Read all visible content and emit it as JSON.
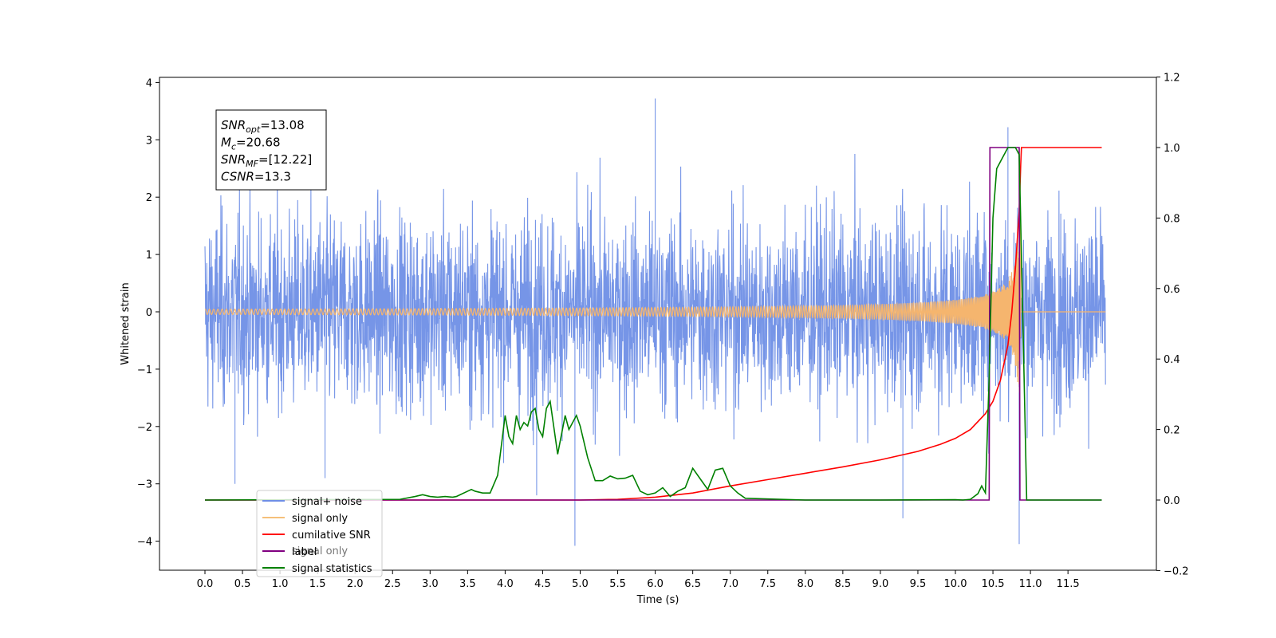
{
  "chart_data": {
    "type": "line",
    "xlabel": "Time (s)",
    "ylabel": "Whitened strain",
    "xlim": [
      -0.6,
      12.6
    ],
    "ylim": [
      -4.5,
      4.1
    ],
    "ylim_right": [
      -0.2,
      1.2
    ],
    "x_ticks": [
      "0.0",
      "0.5",
      "1.0",
      "1.5",
      "2.0",
      "2.5",
      "3.0",
      "3.5",
      "4.0",
      "4.5",
      "5.0",
      "5.5",
      "6.0",
      "6.5",
      "7.0",
      "7.5",
      "8.0",
      "8.5",
      "9.0",
      "9.5",
      "10.0",
      "10.5",
      "11.0",
      "11.5"
    ],
    "y_ticks_left": [
      "4",
      "3",
      "2",
      "1",
      "0",
      "−1",
      "−2",
      "−3",
      "−4"
    ],
    "y_ticks_right": [
      "1.2",
      "1.0",
      "0.8",
      "0.6",
      "0.4",
      "0.2",
      "0.0",
      "−0.2"
    ],
    "info_box": {
      "lines": [
        {
          "sym": "SNR",
          "sub": "opt",
          "value": "=13.08"
        },
        {
          "sym": "M",
          "sub": "c",
          "value": "=20.68"
        },
        {
          "sym": "SNR",
          "sub": "MF",
          "value": "=[12.22]"
        },
        {
          "sym": "CSNR",
          "sub": "",
          "value": "=13.3"
        }
      ]
    },
    "legend": {
      "placement": "lower-left",
      "entries": [
        {
          "label": "signal+ noise",
          "color": "#6f8fe6"
        },
        {
          "label": "signal only",
          "color": "#f5c07a"
        },
        {
          "label": "cumilative SNR",
          "color": "#ff0000"
        },
        {
          "label": "label",
          "color": "#800080"
        },
        {
          "label": "signal statistics",
          "color": "#008000"
        }
      ],
      "hidden_text": "signal only"
    },
    "series": [
      {
        "name": "signal+ noise",
        "axis": "left",
        "color": "#6f8fe6",
        "x_range": [
          0,
          12
        ],
        "description_values": {
          "std": 0.85,
          "max": 3.72,
          "min": -4.08
        },
        "spikes": [
          [
            0.4,
            -3.0
          ],
          [
            6.0,
            3.72
          ],
          [
            4.93,
            -4.08
          ],
          [
            10.85,
            -4.05
          ],
          [
            10.7,
            3.22
          ],
          [
            9.3,
            -3.6
          ],
          [
            4.42,
            -3.2
          ],
          [
            1.6,
            -2.9
          ]
        ]
      },
      {
        "name": "signal only",
        "axis": "left",
        "color": "#f5b56e",
        "chirp": {
          "t_merge": 10.87,
          "amp_max": 1.6
        }
      },
      {
        "name": "cumilative SNR",
        "axis": "right",
        "color": "#ff0000",
        "x": [
          0,
          5.0,
          5.5,
          6.0,
          6.5,
          7.0,
          7.5,
          8.0,
          8.5,
          9.0,
          9.5,
          9.8,
          10.0,
          10.2,
          10.4,
          10.5,
          10.6,
          10.7,
          10.75,
          10.8,
          10.85,
          10.87,
          10.88,
          11.0,
          11.5,
          11.95
        ],
        "y": [
          0,
          0,
          0.002,
          0.008,
          0.02,
          0.04,
          0.058,
          0.076,
          0.094,
          0.114,
          0.138,
          0.158,
          0.175,
          0.2,
          0.245,
          0.28,
          0.34,
          0.44,
          0.53,
          0.66,
          0.82,
          0.95,
          1.0,
          1.0,
          1.0,
          1.0
        ]
      },
      {
        "name": "label",
        "axis": "right",
        "color": "#800080",
        "x": [
          0,
          10.45,
          10.46,
          10.85,
          10.86,
          11.95
        ],
        "y": [
          0,
          0,
          1.0,
          1.0,
          0,
          0
        ]
      },
      {
        "name": "signal statistics",
        "axis": "right",
        "color": "#008000",
        "x": [
          0,
          2.6,
          2.8,
          2.9,
          3.0,
          3.1,
          3.2,
          3.3,
          3.35,
          3.4,
          3.5,
          3.55,
          3.6,
          3.7,
          3.8,
          3.9,
          4.0,
          4.05,
          4.1,
          4.15,
          4.2,
          4.25,
          4.3,
          4.35,
          4.4,
          4.45,
          4.5,
          4.55,
          4.6,
          4.7,
          4.8,
          4.85,
          4.9,
          4.95,
          5.0,
          5.1,
          5.2,
          5.3,
          5.4,
          5.5,
          5.6,
          5.7,
          5.8,
          5.9,
          6.0,
          6.1,
          6.2,
          6.3,
          6.4,
          6.5,
          6.6,
          6.7,
          6.8,
          6.9,
          7.0,
          7.1,
          7.2,
          8.0,
          9.0,
          10.0,
          10.1,
          10.2,
          10.3,
          10.35,
          10.4,
          10.45,
          10.5,
          10.55,
          10.6,
          10.7,
          10.75,
          10.8,
          10.85,
          10.9,
          10.95,
          11.0,
          11.95
        ],
        "y": [
          0,
          0.002,
          0.01,
          0.015,
          0.01,
          0.008,
          0.01,
          0.008,
          0.01,
          0.015,
          0.025,
          0.03,
          0.025,
          0.02,
          0.02,
          0.07,
          0.24,
          0.18,
          0.16,
          0.24,
          0.2,
          0.22,
          0.21,
          0.25,
          0.26,
          0.2,
          0.18,
          0.26,
          0.28,
          0.13,
          0.24,
          0.2,
          0.22,
          0.24,
          0.21,
          0.12,
          0.055,
          0.055,
          0.068,
          0.06,
          0.062,
          0.07,
          0.025,
          0.015,
          0.02,
          0.035,
          0.01,
          0.025,
          0.035,
          0.09,
          0.06,
          0.03,
          0.085,
          0.09,
          0.04,
          0.02,
          0.005,
          0.0,
          0.0,
          0.001,
          0.0,
          0.002,
          0.018,
          0.04,
          0.02,
          0.35,
          0.8,
          0.94,
          0.96,
          1.0,
          1.0,
          1.0,
          0.98,
          0.5,
          0.0,
          0.0,
          0.0
        ]
      }
    ]
  }
}
